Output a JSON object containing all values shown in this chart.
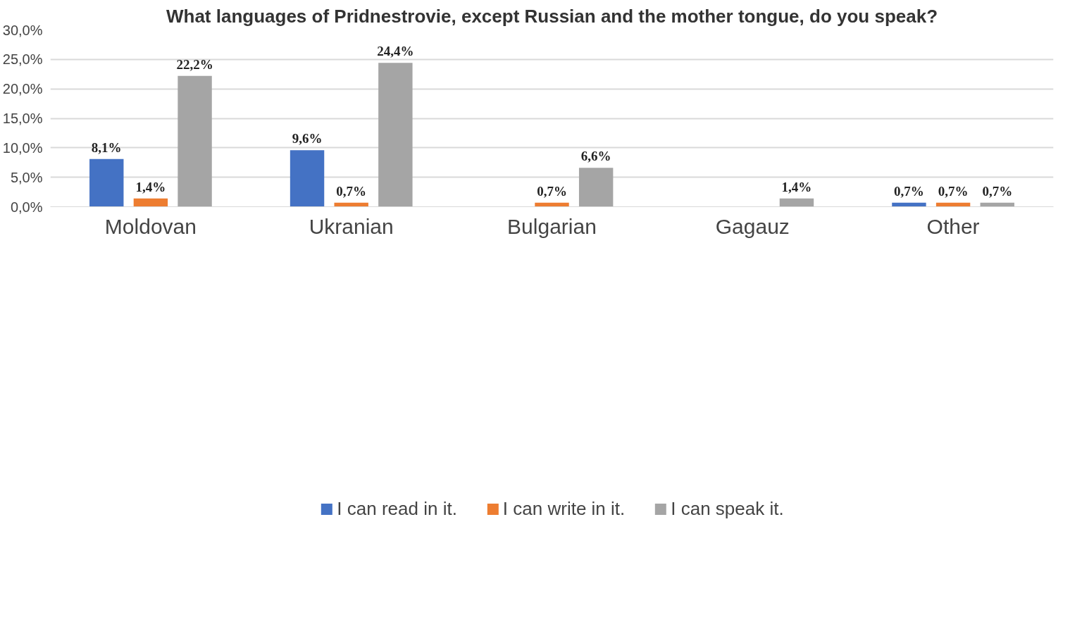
{
  "chart_data": {
    "type": "bar",
    "title": "What languages of Pridnestrovie, except Russian and the mother tongue, do you speak?",
    "categories": [
      "Moldovan",
      "Ukranian",
      "Bulgarian",
      "Gagauz",
      "Other"
    ],
    "series": [
      {
        "name": "I can read in it.",
        "color": "#4472c4",
        "values": [
          8.1,
          9.6,
          null,
          null,
          0.7
        ],
        "value_labels": [
          "8,1%",
          "9,6%",
          null,
          null,
          "0,7%"
        ]
      },
      {
        "name": "I can write in it.",
        "color": "#ed7d31",
        "values": [
          1.4,
          0.7,
          0.7,
          null,
          0.7
        ],
        "value_labels": [
          "1,4%",
          "0,7%",
          "0,7%",
          null,
          "0,7%"
        ]
      },
      {
        "name": "I can speak it.",
        "color": "#a5a5a5",
        "values": [
          22.2,
          24.4,
          6.6,
          1.4,
          0.7
        ],
        "value_labels": [
          "22,2%",
          "24,4%",
          "6,6%",
          "1,4%",
          "0,7%"
        ]
      }
    ],
    "ylim": [
      0,
      30
    ],
    "yticks": [
      {
        "value": 0,
        "label": "0,0%"
      },
      {
        "value": 5,
        "label": "5,0%"
      },
      {
        "value": 10,
        "label": "10,0%"
      },
      {
        "value": 15,
        "label": "15,0%"
      },
      {
        "value": 20,
        "label": "20,0%"
      },
      {
        "value": 25,
        "label": "25,0%"
      },
      {
        "value": 30,
        "label": "30,0%"
      }
    ],
    "grid": "y",
    "legend": "bottom"
  }
}
